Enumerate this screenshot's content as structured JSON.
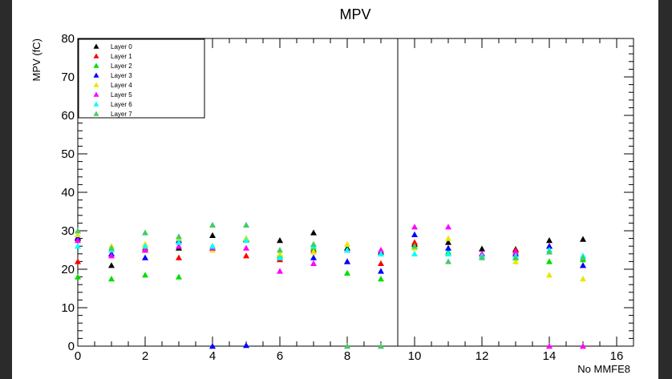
{
  "chart_data": {
    "type": "scatter",
    "title": "MPV",
    "xlabel": "No MMFE8",
    "ylabel": "MPV (fC)",
    "xlim": [
      0,
      16.5
    ],
    "ylim": [
      0,
      80
    ],
    "x_ticks": [
      0,
      2,
      4,
      6,
      8,
      10,
      12,
      14,
      16
    ],
    "y_ticks": [
      0,
      10,
      20,
      30,
      40,
      50,
      60,
      70,
      80
    ],
    "marker": "triangle",
    "divider_x": 9.5,
    "legend_position": "top-left",
    "series": [
      {
        "name": "Layer 0",
        "color": "#000000",
        "points": [
          [
            0,
            28
          ],
          [
            1,
            21
          ],
          [
            2,
            25
          ],
          [
            3,
            25.5
          ],
          [
            4,
            28.8
          ],
          [
            5,
            27.8
          ],
          [
            6,
            27.5
          ],
          [
            7,
            29.5
          ],
          [
            8,
            25.5
          ],
          [
            9,
            24.5
          ],
          [
            10,
            26.5
          ],
          [
            11,
            27
          ],
          [
            12,
            25.3
          ],
          [
            13,
            25.2
          ],
          [
            14,
            27.5
          ],
          [
            15,
            27.8
          ]
        ]
      },
      {
        "name": "Layer 1",
        "color": "#ff0000",
        "points": [
          [
            0,
            22
          ],
          [
            1,
            24
          ],
          [
            2,
            25.5
          ],
          [
            3,
            23
          ],
          [
            4,
            25.5
          ],
          [
            5,
            23.5
          ],
          [
            6,
            22.5
          ],
          [
            7,
            25
          ],
          [
            8,
            22
          ],
          [
            9,
            21.5
          ],
          [
            10,
            27
          ],
          [
            11,
            24
          ],
          [
            12,
            24
          ],
          [
            13,
            25
          ],
          [
            14,
            26
          ],
          [
            15,
            21
          ]
        ]
      },
      {
        "name": "Layer 2",
        "color": "#00dd00",
        "points": [
          [
            0,
            18
          ],
          [
            1,
            17.5
          ],
          [
            2,
            18.5
          ],
          [
            3,
            18
          ],
          [
            4,
            26
          ],
          [
            5,
            28
          ],
          [
            6,
            23.5
          ],
          [
            7,
            25.5
          ],
          [
            8,
            19
          ],
          [
            9,
            17.5
          ],
          [
            10,
            26
          ],
          [
            11,
            24.5
          ],
          [
            12,
            23.5
          ],
          [
            13,
            23
          ],
          [
            14,
            22
          ],
          [
            15,
            22.5
          ]
        ]
      },
      {
        "name": "Layer 3",
        "color": "#0000ff",
        "points": [
          [
            0,
            28.3
          ],
          [
            1,
            24
          ],
          [
            2,
            23
          ],
          [
            3,
            27.5
          ],
          [
            4,
            0
          ],
          [
            5,
            0.2
          ],
          [
            6,
            23
          ],
          [
            7,
            23
          ],
          [
            8,
            22
          ],
          [
            9,
            19.5
          ],
          [
            10,
            29
          ],
          [
            11,
            25.5
          ],
          [
            12,
            24
          ],
          [
            13,
            24
          ],
          [
            14,
            26
          ],
          [
            15,
            21
          ]
        ]
      },
      {
        "name": "Layer 4",
        "color": "#e8e800",
        "points": [
          [
            0,
            29
          ],
          [
            1,
            26
          ],
          [
            2,
            26.5
          ],
          [
            3,
            28
          ],
          [
            4,
            25
          ],
          [
            5,
            28
          ],
          [
            6,
            24
          ],
          [
            7,
            24.5
          ],
          [
            8,
            26.5
          ],
          [
            9,
            24
          ],
          [
            10,
            25.5
          ],
          [
            11,
            28
          ],
          [
            12,
            23.5
          ],
          [
            13,
            22
          ],
          [
            14,
            18.5
          ],
          [
            15,
            17.5
          ]
        ]
      },
      {
        "name": "Layer 5",
        "color": "#ff00ff",
        "points": [
          [
            0,
            27.5
          ],
          [
            1,
            23.5
          ],
          [
            2,
            25
          ],
          [
            3,
            26
          ],
          [
            4,
            25.5
          ],
          [
            5,
            25.5
          ],
          [
            6,
            19.5
          ],
          [
            7,
            21.5
          ],
          [
            8,
            25
          ],
          [
            9,
            25
          ],
          [
            10,
            31
          ],
          [
            11,
            31
          ],
          [
            12,
            24
          ],
          [
            13,
            24.5
          ],
          [
            14,
            0
          ],
          [
            15,
            0
          ]
        ]
      },
      {
        "name": "Layer 6",
        "color": "#00ffff",
        "points": [
          [
            0,
            26
          ],
          [
            1,
            25
          ],
          [
            2,
            26
          ],
          [
            3,
            27
          ],
          [
            4,
            26
          ],
          [
            5,
            27.5
          ],
          [
            6,
            23
          ],
          [
            7,
            26
          ],
          [
            8,
            25
          ],
          [
            9,
            24
          ],
          [
            10,
            24
          ],
          [
            11,
            24
          ],
          [
            12,
            23.5
          ],
          [
            13,
            23.5
          ],
          [
            14,
            25
          ],
          [
            15,
            23.5
          ]
        ]
      },
      {
        "name": "Layer 7",
        "color": "#44cc66",
        "points": [
          [
            0,
            30
          ],
          [
            1,
            25.5
          ],
          [
            2,
            29.5
          ],
          [
            3,
            28.5
          ],
          [
            4,
            31.5
          ],
          [
            5,
            31.5
          ],
          [
            6,
            25
          ],
          [
            7,
            26.5
          ],
          [
            8,
            0
          ],
          [
            9,
            0
          ],
          [
            10,
            26
          ],
          [
            11,
            22
          ],
          [
            12,
            23
          ],
          [
            13,
            23
          ],
          [
            14,
            24.5
          ],
          [
            15,
            23
          ]
        ]
      }
    ]
  }
}
